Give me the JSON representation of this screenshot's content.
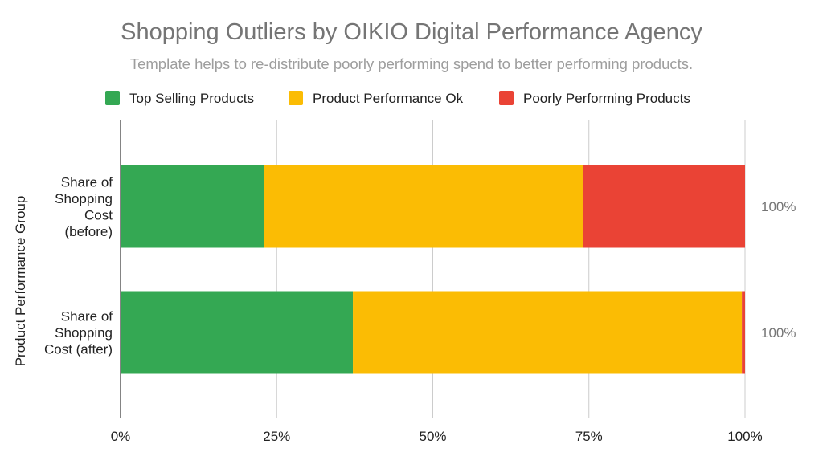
{
  "chart_data": {
    "type": "bar",
    "orientation": "horizontal",
    "stacked": "percent",
    "title": "Shopping Outliers by OIKIO Digital Performance Agency",
    "subtitle": "Template helps to re-distribute poorly performing spend to better performing products.",
    "ylabel": "Product Performance Group",
    "xlabel": "",
    "categories": [
      [
        "Share of",
        "Shopping",
        "Cost",
        "(before)"
      ],
      [
        "Share of",
        "Shopping",
        "Cost (after)"
      ]
    ],
    "series": [
      {
        "name": "Top Selling Products",
        "color": "#34a853",
        "values": [
          23,
          37.2
        ]
      },
      {
        "name": "Product Performance Ok",
        "color": "#fbbc04",
        "values": [
          51,
          62.3
        ]
      },
      {
        "name": "Poorly Performing Products",
        "color": "#ea4335",
        "values": [
          26,
          0.5
        ]
      }
    ],
    "totals": [
      "100%",
      "100%"
    ],
    "xlim": [
      0,
      100
    ],
    "xticks": [
      0,
      25,
      50,
      75,
      100
    ],
    "xtick_labels": [
      "0%",
      "25%",
      "50%",
      "75%",
      "100%"
    ],
    "grid": true,
    "legend_position": "top"
  }
}
